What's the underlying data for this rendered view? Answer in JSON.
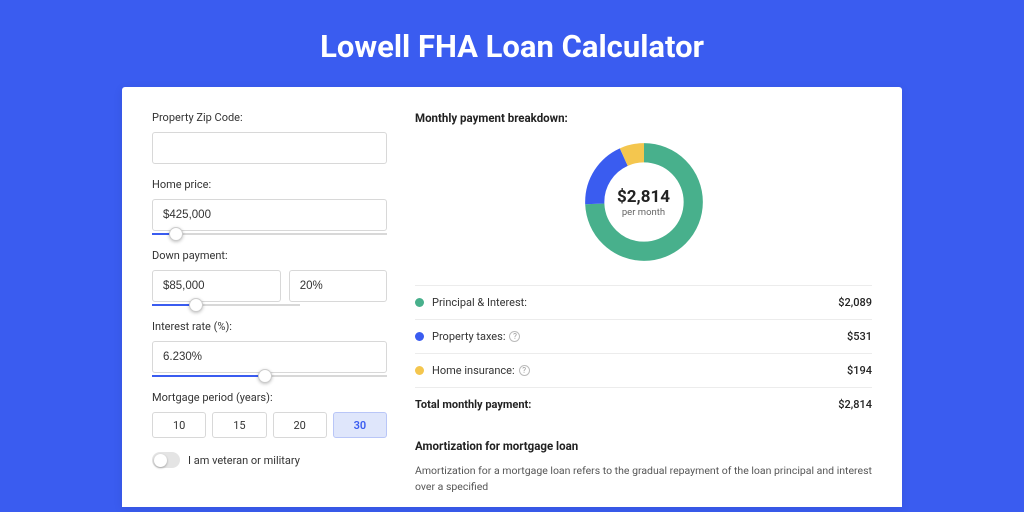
{
  "title": "Lowell FHA Loan Calculator",
  "colors": {
    "page_bg": "#3a5cf0",
    "accent": "#3a5cf0",
    "segment_pi": "#48b08c",
    "segment_tax": "#3a5cf0",
    "segment_ins": "#f4c64e"
  },
  "form": {
    "zip_label": "Property Zip Code:",
    "zip_value": "",
    "home_price_label": "Home price:",
    "home_price_value": "$425,000",
    "home_price_slider_pct": 10,
    "down_payment_label": "Down payment:",
    "down_payment_value": "$85,000",
    "down_payment_pct_value": "20%",
    "down_payment_slider_pct": 30,
    "interest_label": "Interest rate (%):",
    "interest_value": "6.230%",
    "interest_slider_pct": 48,
    "period_label": "Mortgage period (years):",
    "period_options": [
      "10",
      "15",
      "20",
      "30"
    ],
    "period_selected": "30",
    "veteran_label": "I am veteran or military"
  },
  "breakdown": {
    "title": "Monthly payment breakdown:",
    "center_amount": "$2,814",
    "center_sub": "per month",
    "rows": [
      {
        "key": "pi",
        "label": "Principal & Interest:",
        "value": "$2,089",
        "num": 2089,
        "color": "#48b08c",
        "help": false
      },
      {
        "key": "tax",
        "label": "Property taxes:",
        "value": "$531",
        "num": 531,
        "color": "#3a5cf0",
        "help": true
      },
      {
        "key": "ins",
        "label": "Home insurance:",
        "value": "$194",
        "num": 194,
        "color": "#f4c64e",
        "help": true
      }
    ],
    "total_label": "Total monthly payment:",
    "total_value": "$2,814"
  },
  "amortization": {
    "title": "Amortization for mortgage loan",
    "text": "Amortization for a mortgage loan refers to the gradual repayment of the loan principal and interest over a specified"
  }
}
